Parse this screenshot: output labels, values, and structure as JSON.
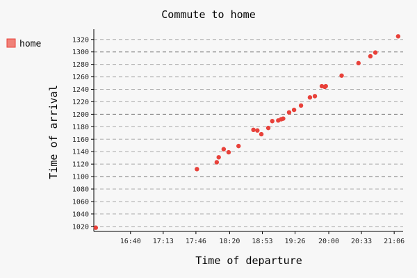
{
  "chart_data": {
    "type": "scatter",
    "title": "Commute to home",
    "xlabel": "Time of departure",
    "ylabel": "Time of arrival",
    "legend": {
      "placement": "left",
      "entries": [
        "home"
      ]
    },
    "series": [
      {
        "name": "home",
        "color": "#e8413a",
        "points": [
          {
            "x": "16:05",
            "y": 1018
          },
          {
            "x": "17:47",
            "y": 1112
          },
          {
            "x": "18:07",
            "y": 1123
          },
          {
            "x": "18:09",
            "y": 1131
          },
          {
            "x": "18:14",
            "y": 1144
          },
          {
            "x": "18:19",
            "y": 1139
          },
          {
            "x": "18:29",
            "y": 1149
          },
          {
            "x": "18:44",
            "y": 1175
          },
          {
            "x": "18:48",
            "y": 1174
          },
          {
            "x": "18:52",
            "y": 1168
          },
          {
            "x": "18:59",
            "y": 1178
          },
          {
            "x": "19:03",
            "y": 1189
          },
          {
            "x": "19:09",
            "y": 1190
          },
          {
            "x": "19:12",
            "y": 1192
          },
          {
            "x": "19:14",
            "y": 1193
          },
          {
            "x": "19:20",
            "y": 1203
          },
          {
            "x": "19:25",
            "y": 1207
          },
          {
            "x": "19:32",
            "y": 1214
          },
          {
            "x": "19:41",
            "y": 1227
          },
          {
            "x": "19:46",
            "y": 1229
          },
          {
            "x": "19:53",
            "y": 1245
          },
          {
            "x": "19:56",
            "y": 1244
          },
          {
            "x": "19:57",
            "y": 1245
          },
          {
            "x": "20:13",
            "y": 1262
          },
          {
            "x": "20:30",
            "y": 1282
          },
          {
            "x": "20:42",
            "y": 1293
          },
          {
            "x": "20:47",
            "y": 1299
          },
          {
            "x": "21:10",
            "y": 1325
          }
        ]
      }
    ],
    "x_ticks": [
      "16:40",
      "17:13",
      "17:46",
      "18:20",
      "18:53",
      "19:26",
      "20:00",
      "20:33",
      "21:06"
    ],
    "y_ticks": [
      1020,
      1040,
      1060,
      1080,
      1100,
      1120,
      1140,
      1160,
      1180,
      1200,
      1220,
      1240,
      1260,
      1280,
      1300,
      1320
    ],
    "xlim": [
      "16:03",
      "21:15"
    ],
    "ylim": [
      1012,
      1332
    ],
    "grid": "horizontal dashed"
  }
}
